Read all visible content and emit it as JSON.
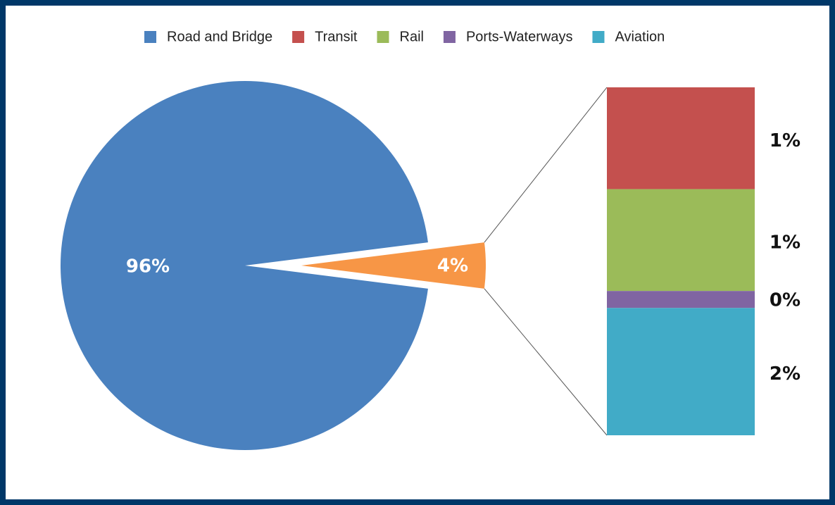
{
  "chart_data": {
    "type": "pie-of-bar",
    "categories": [
      "Road and Bridge",
      null
    ],
    "values": [
      96,
      4
    ],
    "value_labels": [
      "96%",
      "4%"
    ],
    "colors": [
      "#4a81bf",
      "#f79646"
    ],
    "bar_series": [
      {
        "name": "Transit",
        "color": "#c4504e",
        "values": [
          1.2
        ],
        "value_labels": [
          "1%"
        ]
      },
      {
        "name": "Rail",
        "color": "#9bbb59",
        "values": [
          1.2
        ],
        "value_labels": [
          "1%"
        ]
      },
      {
        "name": "Ports-Waterways",
        "color": "#8065a2",
        "values": [
          0.2
        ],
        "value_labels": [
          "0%"
        ]
      },
      {
        "name": "Aviation",
        "color": "#41abc7",
        "values": [
          1.5
        ],
        "value_labels": [
          "2%"
        ]
      }
    ]
  }
}
